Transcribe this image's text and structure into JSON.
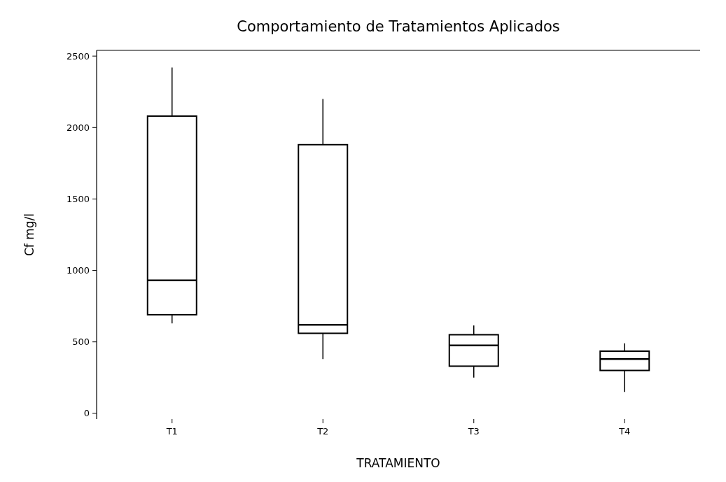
{
  "chart_data": {
    "type": "box",
    "title": "Comportamiento de Tratamientos Aplicados",
    "xlabel": "TRATAMIENTO",
    "ylabel": "Cf mg/l",
    "categories": [
      "T1",
      "T2",
      "T3",
      "T4"
    ],
    "boxes": [
      {
        "low": 630,
        "q1": 690,
        "median": 930,
        "q3": 2080,
        "high": 2420
      },
      {
        "low": 380,
        "q1": 560,
        "median": 620,
        "q3": 1880,
        "high": 2200
      },
      {
        "low": 250,
        "q1": 330,
        "median": 475,
        "q3": 550,
        "high": 615
      },
      {
        "low": 150,
        "q1": 300,
        "median": 380,
        "q3": 435,
        "high": 490
      }
    ],
    "color": "#000000",
    "ylim": [
      -40,
      2540
    ],
    "yticks": [
      0,
      500,
      1000,
      1500,
      2000,
      2500
    ],
    "grid": false
  }
}
